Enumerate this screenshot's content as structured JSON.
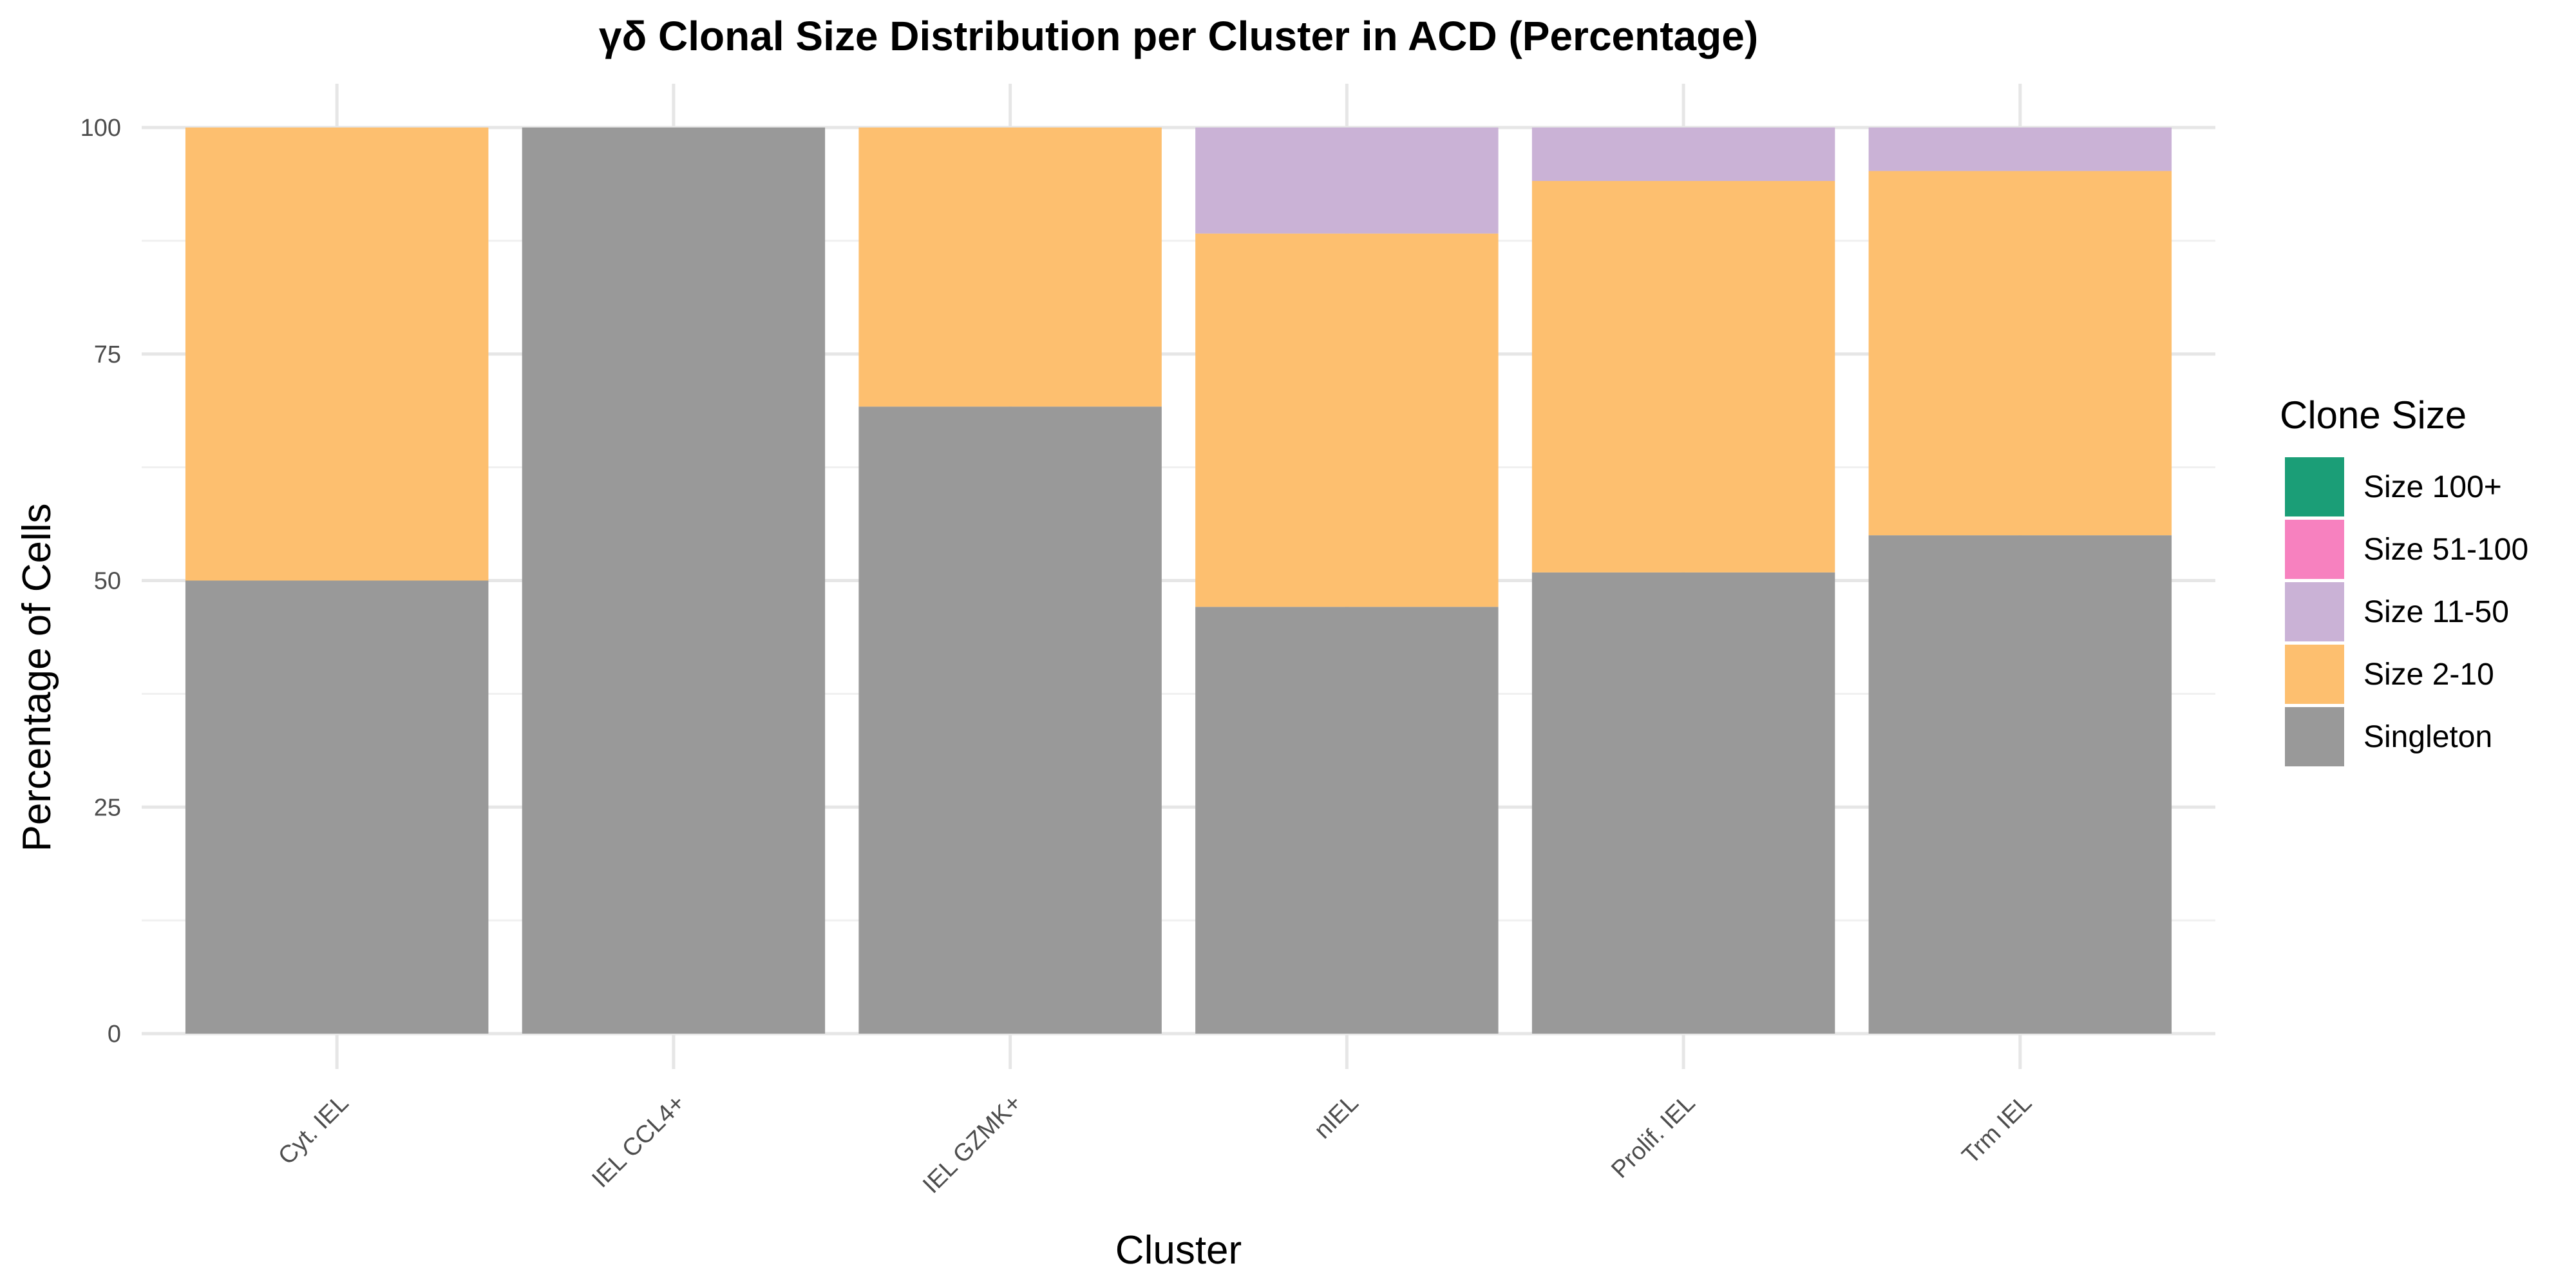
{
  "chart_data": {
    "type": "bar",
    "stacked": true,
    "title": "γδ Clonal Size Distribution per Cluster in ACD (Percentage)",
    "xlabel": "Cluster",
    "ylabel": "Percentage of Cells",
    "ylim": [
      0,
      100
    ],
    "yticks": [
      0,
      25,
      50,
      75,
      100
    ],
    "grid": true,
    "legend_position": "right",
    "legend_title": "Clone Size",
    "categories": [
      "Cyt. IEL",
      "IEL CCL4+",
      "IEL GZMK+",
      "nIEL",
      "Prolif. IEL",
      "Trm IEL"
    ],
    "series": [
      {
        "name": "Singleton",
        "color": "#999999",
        "values": [
          50,
          100,
          69.2,
          47.1,
          50.9,
          55
        ]
      },
      {
        "name": "Size 2-10",
        "color": "#FDBF6F",
        "values": [
          50,
          0,
          30.8,
          41.2,
          43.2,
          40.2
        ]
      },
      {
        "name": "Size 11-50",
        "color": "#CAB2D6",
        "values": [
          0,
          0,
          0,
          11.7,
          5.9,
          4.8
        ]
      },
      {
        "name": "Size 51-100",
        "color": "#F781BF",
        "values": [
          0,
          0,
          0,
          0,
          0,
          0
        ]
      },
      {
        "name": "Size 100+",
        "color": "#1B9E77",
        "values": [
          0,
          0,
          0,
          0,
          0,
          0
        ]
      }
    ]
  }
}
